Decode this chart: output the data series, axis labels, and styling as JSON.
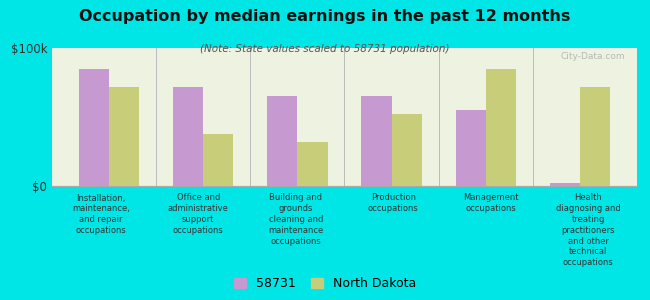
{
  "title": "Occupation by median earnings in the past 12 months",
  "subtitle": "(Note: State values scaled to 58731 population)",
  "background_color": "#00e5e5",
  "plot_bg_color": "#eef2e0",
  "categories": [
    "Installation,\nmaintenance,\nand repair\noccupations",
    "Office and\nadministrative\nsupport\noccupations",
    "Building and\ngrounds\ncleaning and\nmaintenance\noccupations",
    "Production\noccupations",
    "Management\noccupations",
    "Health\ndiagnosing and\ntreating\npractitioners\nand other\ntechnical\noccupations"
  ],
  "values_58731": [
    85000,
    72000,
    65000,
    65000,
    55000,
    2000
  ],
  "values_nd": [
    72000,
    38000,
    32000,
    52000,
    85000,
    72000
  ],
  "color_58731": "#c799d1",
  "color_nd": "#c8cd7a",
  "ylim": [
    0,
    100000
  ],
  "ytick_labels": [
    "$0",
    "$100k"
  ],
  "legend_58731": "58731",
  "legend_nd": "North Dakota",
  "watermark": "City-Data.com"
}
